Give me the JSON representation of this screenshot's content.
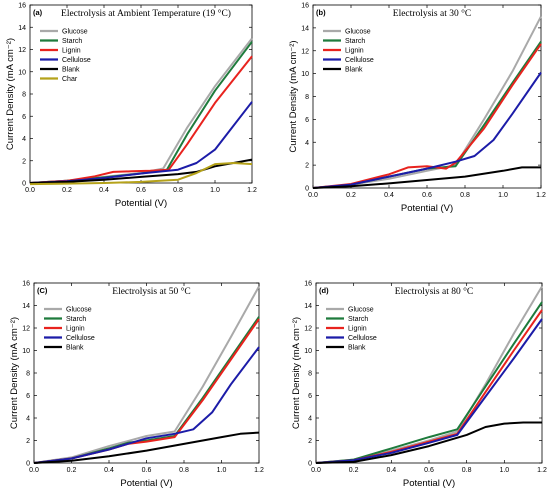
{
  "chart_data": [
    {
      "type": "line",
      "panel_label": "(a)",
      "title": "Electrolysis at Ambient Temperature (19 °C)",
      "xlabel": "Potential (V)",
      "ylabel": "Current Density (mA cm⁻²)",
      "xlim": [
        0,
        1.2
      ],
      "ylim": [
        0,
        16
      ],
      "xticks": [
        "0.0",
        "0.2",
        "0.4",
        "0.6",
        "0.8",
        "1.0",
        "1.2"
      ],
      "yticks": [
        "0",
        "2",
        "4",
        "6",
        "8",
        "10",
        "12",
        "14",
        "16"
      ],
      "legend_position": "left",
      "series": [
        {
          "name": "Glucose",
          "color": "#a9a9a9",
          "x": [
            0,
            0.2,
            0.4,
            0.6,
            0.72,
            0.85,
            1.0,
            1.2
          ],
          "y": [
            0,
            0.2,
            0.55,
            0.9,
            1.3,
            5.0,
            8.7,
            13.0
          ]
        },
        {
          "name": "Starch",
          "color": "#1e7b3c",
          "x": [
            0,
            0.2,
            0.4,
            0.6,
            0.74,
            0.85,
            1.0,
            1.2
          ],
          "y": [
            0,
            0.2,
            0.5,
            0.85,
            1.2,
            4.4,
            8.3,
            12.7
          ]
        },
        {
          "name": "Lignin",
          "color": "#e8231e",
          "x": [
            0,
            0.2,
            0.35,
            0.45,
            0.55,
            0.65,
            0.75,
            0.85,
            1.0,
            1.2
          ],
          "y": [
            0,
            0.2,
            0.6,
            1.0,
            1.05,
            1.1,
            1.2,
            3.5,
            7.2,
            11.4
          ]
        },
        {
          "name": "Cellulose",
          "color": "#1c1ca8",
          "x": [
            0,
            0.2,
            0.4,
            0.6,
            0.8,
            0.9,
            1.0,
            1.2
          ],
          "y": [
            0,
            0.15,
            0.45,
            0.85,
            1.2,
            1.8,
            3.0,
            7.3
          ]
        },
        {
          "name": "Blank",
          "color": "#000000",
          "x": [
            0,
            0.2,
            0.4,
            0.6,
            0.8,
            0.9,
            1.0,
            1.2
          ],
          "y": [
            0,
            0.1,
            0.3,
            0.55,
            0.8,
            1.0,
            1.5,
            2.1
          ]
        },
        {
          "name": "Char",
          "color": "#b5a21a",
          "x": [
            0,
            0.2,
            0.4,
            0.6,
            0.8,
            0.9,
            1.0,
            1.1,
            1.2
          ],
          "y": [
            -0.1,
            -0.05,
            0.0,
            0.1,
            0.3,
            0.9,
            1.7,
            1.8,
            1.7
          ]
        }
      ]
    },
    {
      "type": "line",
      "panel_label": "(b)",
      "title": "Electrolysis at 30 °C",
      "xlabel": "Potential (V)",
      "ylabel": "Current Density (mA cm⁻²)",
      "xlim": [
        0,
        1.2
      ],
      "ylim": [
        0,
        16
      ],
      "xticks": [
        "0.0",
        "0.2",
        "0.4",
        "0.6",
        "0.8",
        "1.0",
        "1.2"
      ],
      "yticks": [
        "0",
        "2",
        "4",
        "6",
        "8",
        "10",
        "12",
        "14",
        "16"
      ],
      "legend_position": "left",
      "series": [
        {
          "name": "Glucose",
          "color": "#a9a9a9",
          "x": [
            0,
            0.2,
            0.4,
            0.6,
            0.75,
            0.9,
            1.05,
            1.2
          ],
          "y": [
            0,
            0.3,
            0.8,
            1.5,
            2.0,
            6.0,
            10.2,
            15.0
          ]
        },
        {
          "name": "Starch",
          "color": "#1e7b3c",
          "x": [
            0,
            0.2,
            0.4,
            0.6,
            0.75,
            0.9,
            1.05,
            1.2
          ],
          "y": [
            0,
            0.3,
            1.0,
            1.7,
            1.9,
            5.5,
            9.2,
            12.8
          ]
        },
        {
          "name": "Lignin",
          "color": "#e8231e",
          "x": [
            0,
            0.2,
            0.4,
            0.5,
            0.6,
            0.7,
            0.75,
            0.9,
            1.05,
            1.2
          ],
          "y": [
            0,
            0.35,
            1.2,
            1.8,
            1.9,
            1.7,
            2.2,
            5.2,
            9.0,
            12.6
          ]
        },
        {
          "name": "Cellulose",
          "color": "#1c1ca8",
          "x": [
            0,
            0.2,
            0.4,
            0.6,
            0.75,
            0.85,
            0.95,
            1.05,
            1.2
          ],
          "y": [
            0,
            0.3,
            1.0,
            1.7,
            2.3,
            2.8,
            4.2,
            6.5,
            10.1
          ]
        },
        {
          "name": "Blank",
          "color": "#000000",
          "x": [
            0,
            0.2,
            0.4,
            0.6,
            0.8,
            1.0,
            1.1,
            1.2
          ],
          "y": [
            0,
            0.15,
            0.4,
            0.7,
            1.0,
            1.5,
            1.8,
            1.8
          ]
        }
      ]
    },
    {
      "type": "line",
      "panel_label": "(C)",
      "title": "Electrolysis at 50 °C",
      "xlabel": "Potential (V)",
      "ylabel": "Current Density (mA cm⁻²)",
      "xlim": [
        0,
        1.2
      ],
      "ylim": [
        0,
        16
      ],
      "xticks": [
        "0.0",
        "0.2",
        "0.4",
        "0.6",
        "0.8",
        "1.0",
        "1.2"
      ],
      "yticks": [
        "0",
        "2",
        "4",
        "6",
        "8",
        "10",
        "12",
        "14",
        "16"
      ],
      "legend_position": "left",
      "series": [
        {
          "name": "Glucose",
          "color": "#a9a9a9",
          "x": [
            0,
            0.2,
            0.4,
            0.6,
            0.75,
            0.9,
            1.05,
            1.2
          ],
          "y": [
            0,
            0.5,
            1.5,
            2.4,
            2.8,
            6.8,
            11.2,
            15.7
          ]
        },
        {
          "name": "Starch",
          "color": "#1e7b3c",
          "x": [
            0,
            0.2,
            0.4,
            0.5,
            0.6,
            0.75,
            0.9,
            1.05,
            1.2
          ],
          "y": [
            0,
            0.4,
            1.3,
            1.8,
            2.0,
            2.4,
            5.8,
            9.4,
            13.0
          ]
        },
        {
          "name": "Lignin",
          "color": "#e8231e",
          "x": [
            0,
            0.2,
            0.4,
            0.5,
            0.6,
            0.75,
            0.9,
            1.05,
            1.2
          ],
          "y": [
            0,
            0.4,
            1.2,
            1.7,
            1.9,
            2.3,
            5.6,
            9.2,
            12.8
          ]
        },
        {
          "name": "Cellulose",
          "color": "#1c1ca8",
          "x": [
            0,
            0.2,
            0.4,
            0.6,
            0.75,
            0.85,
            0.95,
            1.05,
            1.2
          ],
          "y": [
            0,
            0.4,
            1.2,
            2.2,
            2.6,
            3.0,
            4.5,
            7.0,
            10.3
          ]
        },
        {
          "name": "Blank",
          "color": "#000000",
          "x": [
            0,
            0.2,
            0.4,
            0.6,
            0.8,
            1.0,
            1.1,
            1.2
          ],
          "y": [
            0,
            0.2,
            0.6,
            1.1,
            1.7,
            2.3,
            2.6,
            2.7
          ]
        }
      ]
    },
    {
      "type": "line",
      "panel_label": "(d)",
      "title": "Electrolysis at 80 °C",
      "xlabel": "Potential (V)",
      "ylabel": "Current Density (mA cm⁻²)",
      "xlim": [
        0,
        1.2
      ],
      "ylim": [
        0,
        16
      ],
      "xticks": [
        "0.0",
        "0.2",
        "0.4",
        "0.6",
        "0.8",
        "1.0",
        "1.2"
      ],
      "yticks": [
        "0",
        "2",
        "4",
        "6",
        "8",
        "10",
        "12",
        "14",
        "16"
      ],
      "legend_position": "left",
      "series": [
        {
          "name": "Glucose",
          "color": "#a9a9a9",
          "x": [
            0,
            0.2,
            0.4,
            0.6,
            0.75,
            0.9,
            1.05,
            1.2
          ],
          "y": [
            0,
            0.3,
            1.1,
            2.0,
            2.8,
            7.0,
            11.5,
            15.7
          ]
        },
        {
          "name": "Starch",
          "color": "#1e7b3c",
          "x": [
            0,
            0.2,
            0.4,
            0.6,
            0.75,
            0.9,
            1.05,
            1.2
          ],
          "y": [
            0,
            0.3,
            1.3,
            2.3,
            3.0,
            6.8,
            10.6,
            14.3
          ]
        },
        {
          "name": "Lignin",
          "color": "#e8231e",
          "x": [
            0,
            0.2,
            0.4,
            0.6,
            0.75,
            0.9,
            1.05,
            1.2
          ],
          "y": [
            0,
            0.25,
            1.0,
            1.9,
            2.6,
            6.3,
            10.0,
            13.6
          ]
        },
        {
          "name": "Cellulose",
          "color": "#1c1ca8",
          "x": [
            0,
            0.2,
            0.4,
            0.6,
            0.75,
            0.9,
            1.05,
            1.2
          ],
          "y": [
            0,
            0.25,
            0.9,
            1.8,
            2.5,
            5.9,
            9.3,
            12.8
          ]
        },
        {
          "name": "Blank",
          "color": "#000000",
          "x": [
            0,
            0.2,
            0.4,
            0.6,
            0.8,
            0.9,
            1.0,
            1.1,
            1.2
          ],
          "y": [
            0,
            0.1,
            0.7,
            1.5,
            2.5,
            3.2,
            3.5,
            3.6,
            3.6
          ]
        }
      ]
    }
  ]
}
